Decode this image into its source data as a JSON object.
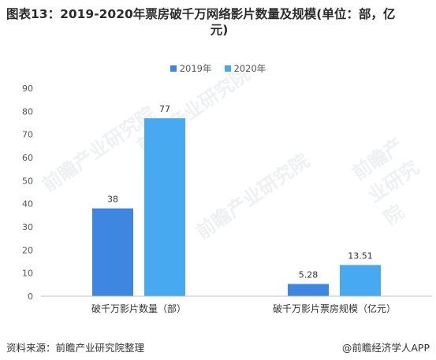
{
  "title_line1": "图表13：2019-2020年票房破千万网络影片数量及规模(单位：部，亿",
  "title_line2": "元)",
  "source": "资料来源：前瞻产业研究院整理",
  "credit": "@前瞻经济学人APP",
  "watermark": "前瞻产业研究院",
  "colors": {
    "s2019": "#3f86e0",
    "s2020": "#47a9ef"
  },
  "chart_data": {
    "type": "bar",
    "categories": [
      "破千万影片数量（部）",
      "破千万影片票房规模（亿元）"
    ],
    "series": [
      {
        "name": "2019年",
        "values": [
          38,
          5.28
        ],
        "labels": [
          "38",
          "5.28"
        ]
      },
      {
        "name": "2020年",
        "values": [
          77,
          13.51
        ],
        "labels": [
          "77",
          "13.51"
        ]
      }
    ],
    "ylim": [
      0,
      90
    ],
    "yticks": [
      0,
      10,
      20,
      30,
      40,
      50,
      60,
      70,
      80,
      90
    ],
    "legend_position": "top-center",
    "grid": false
  }
}
